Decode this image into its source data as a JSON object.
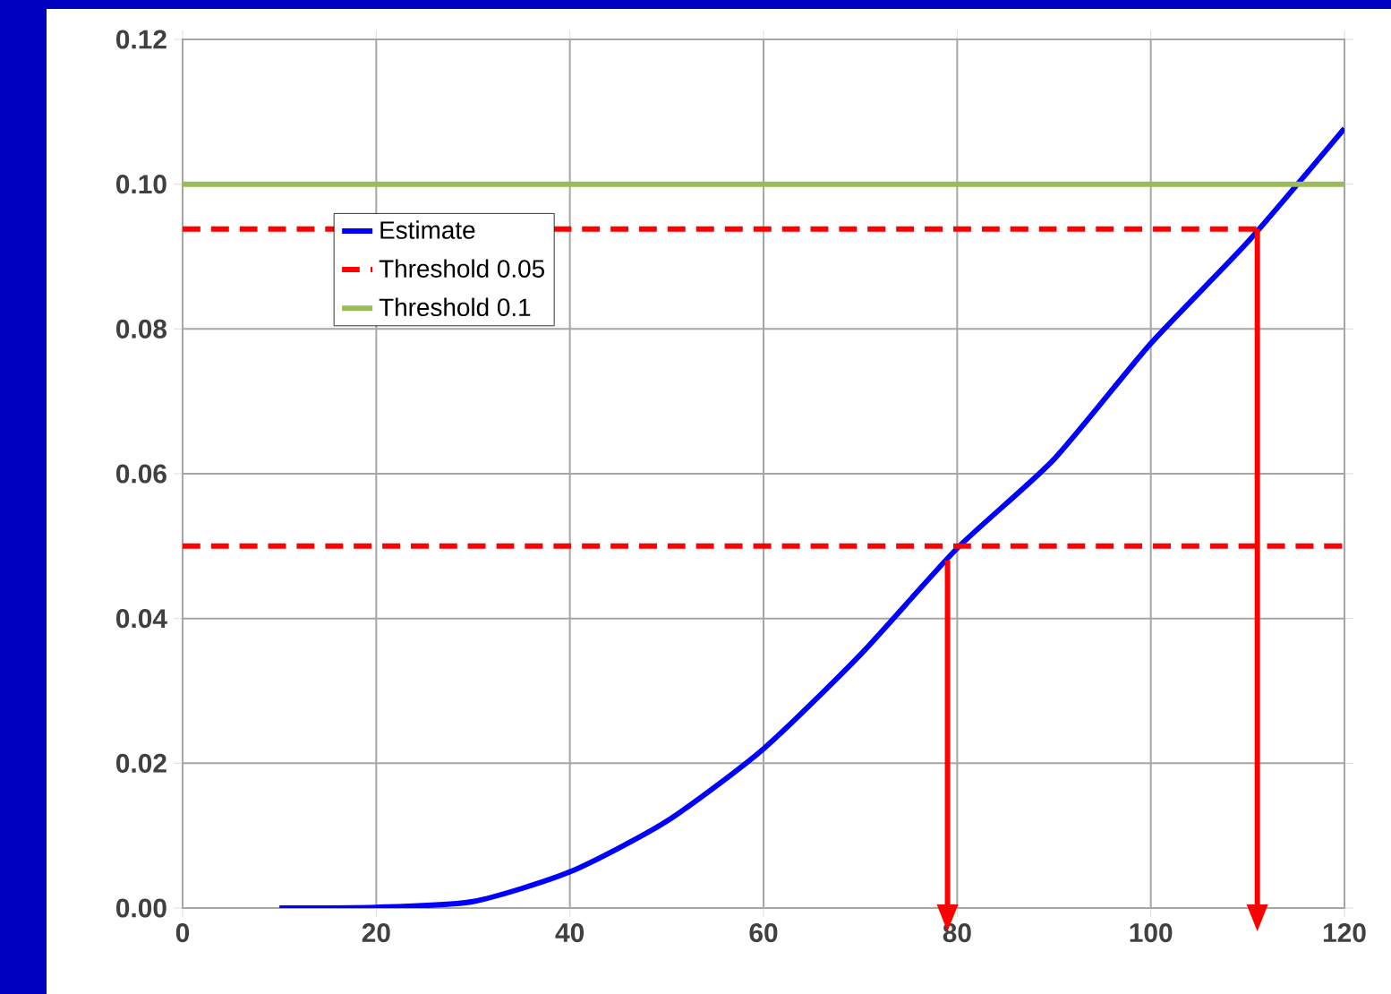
{
  "chart_data": {
    "type": "line",
    "xlim": [
      0,
      120
    ],
    "ylim": [
      0,
      0.12
    ],
    "xticks": [
      0,
      20,
      40,
      60,
      80,
      100,
      120
    ],
    "yticks": [
      {
        "value": 0,
        "label": "0.00"
      },
      {
        "value": 0.02,
        "label": "0.02"
      },
      {
        "value": 0.04,
        "label": "0.04"
      },
      {
        "value": 0.06,
        "label": "0.06"
      },
      {
        "value": 0.08,
        "label": "0.08"
      },
      {
        "value": 0.1,
        "label": "0.10"
      },
      {
        "value": 0.12,
        "label": "0.12"
      }
    ],
    "grid": true,
    "legend": "top left",
    "marker": "none",
    "series": [
      {
        "name": "Estimate",
        "color": "#0000ff",
        "line_style": "solid",
        "x": [
          10,
          20,
          30,
          40,
          50,
          60,
          70,
          80,
          90,
          100,
          110,
          120
        ],
        "values": [
          0,
          0.0001,
          0.0009,
          0.005,
          0.012,
          0.022,
          0.035,
          0.0497,
          0.062,
          0.078,
          0.092,
          0.1077
        ]
      },
      {
        "name": "Threshold 0.05",
        "color": "#ff0000",
        "line_style": "dashed",
        "x": [
          0,
          120
        ],
        "values": [
          0.05,
          0.05
        ]
      },
      {
        "name": "Threshold 0.1",
        "color": "#9bbb59",
        "line_style": "solid",
        "x": [
          0,
          120
        ],
        "values": [
          0.1,
          0.1
        ]
      },
      {
        "color": "#ff0000",
        "line_style": "dashed",
        "x": [
          0,
          111
        ],
        "values": [
          0.0938,
          0.0938
        ]
      },
      {
        "color": "#ff0000",
        "line_style": "solid",
        "x": [
          79,
          79
        ],
        "values": [
          0.048,
          0
        ]
      },
      {
        "color": "#ff0000",
        "line_style": "solid",
        "x": [
          111,
          111
        ],
        "values": [
          0.0938,
          0
        ]
      }
    ]
  }
}
